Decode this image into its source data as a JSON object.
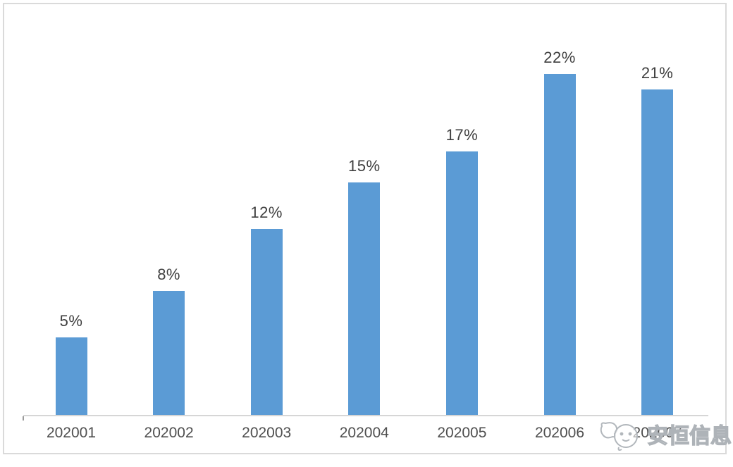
{
  "page": {
    "background_color": "#ffffff",
    "frame_border_color": "#dadada"
  },
  "chart_data": {
    "type": "bar",
    "title": "",
    "xlabel": "",
    "ylabel": "",
    "categories": [
      "202001",
      "202002",
      "202003",
      "202004",
      "202005",
      "202006",
      "202007"
    ],
    "values": [
      5,
      8,
      12,
      15,
      17,
      22,
      21
    ],
    "data_labels": [
      "5%",
      "8%",
      "12%",
      "15%",
      "17%",
      "22%",
      "21%"
    ],
    "ylim": [
      0,
      24
    ],
    "grid": false,
    "legend": false,
    "bar_color": "#5b9bd5",
    "axis_line_color": "#d6d6d6",
    "data_label_color": "#3f3f3f",
    "tick_label_color": "#4f4f4f"
  },
  "watermark": {
    "text": "安恒信息",
    "logo": "mascot-logo-icon",
    "stroke_color": "#aeb3b8"
  }
}
